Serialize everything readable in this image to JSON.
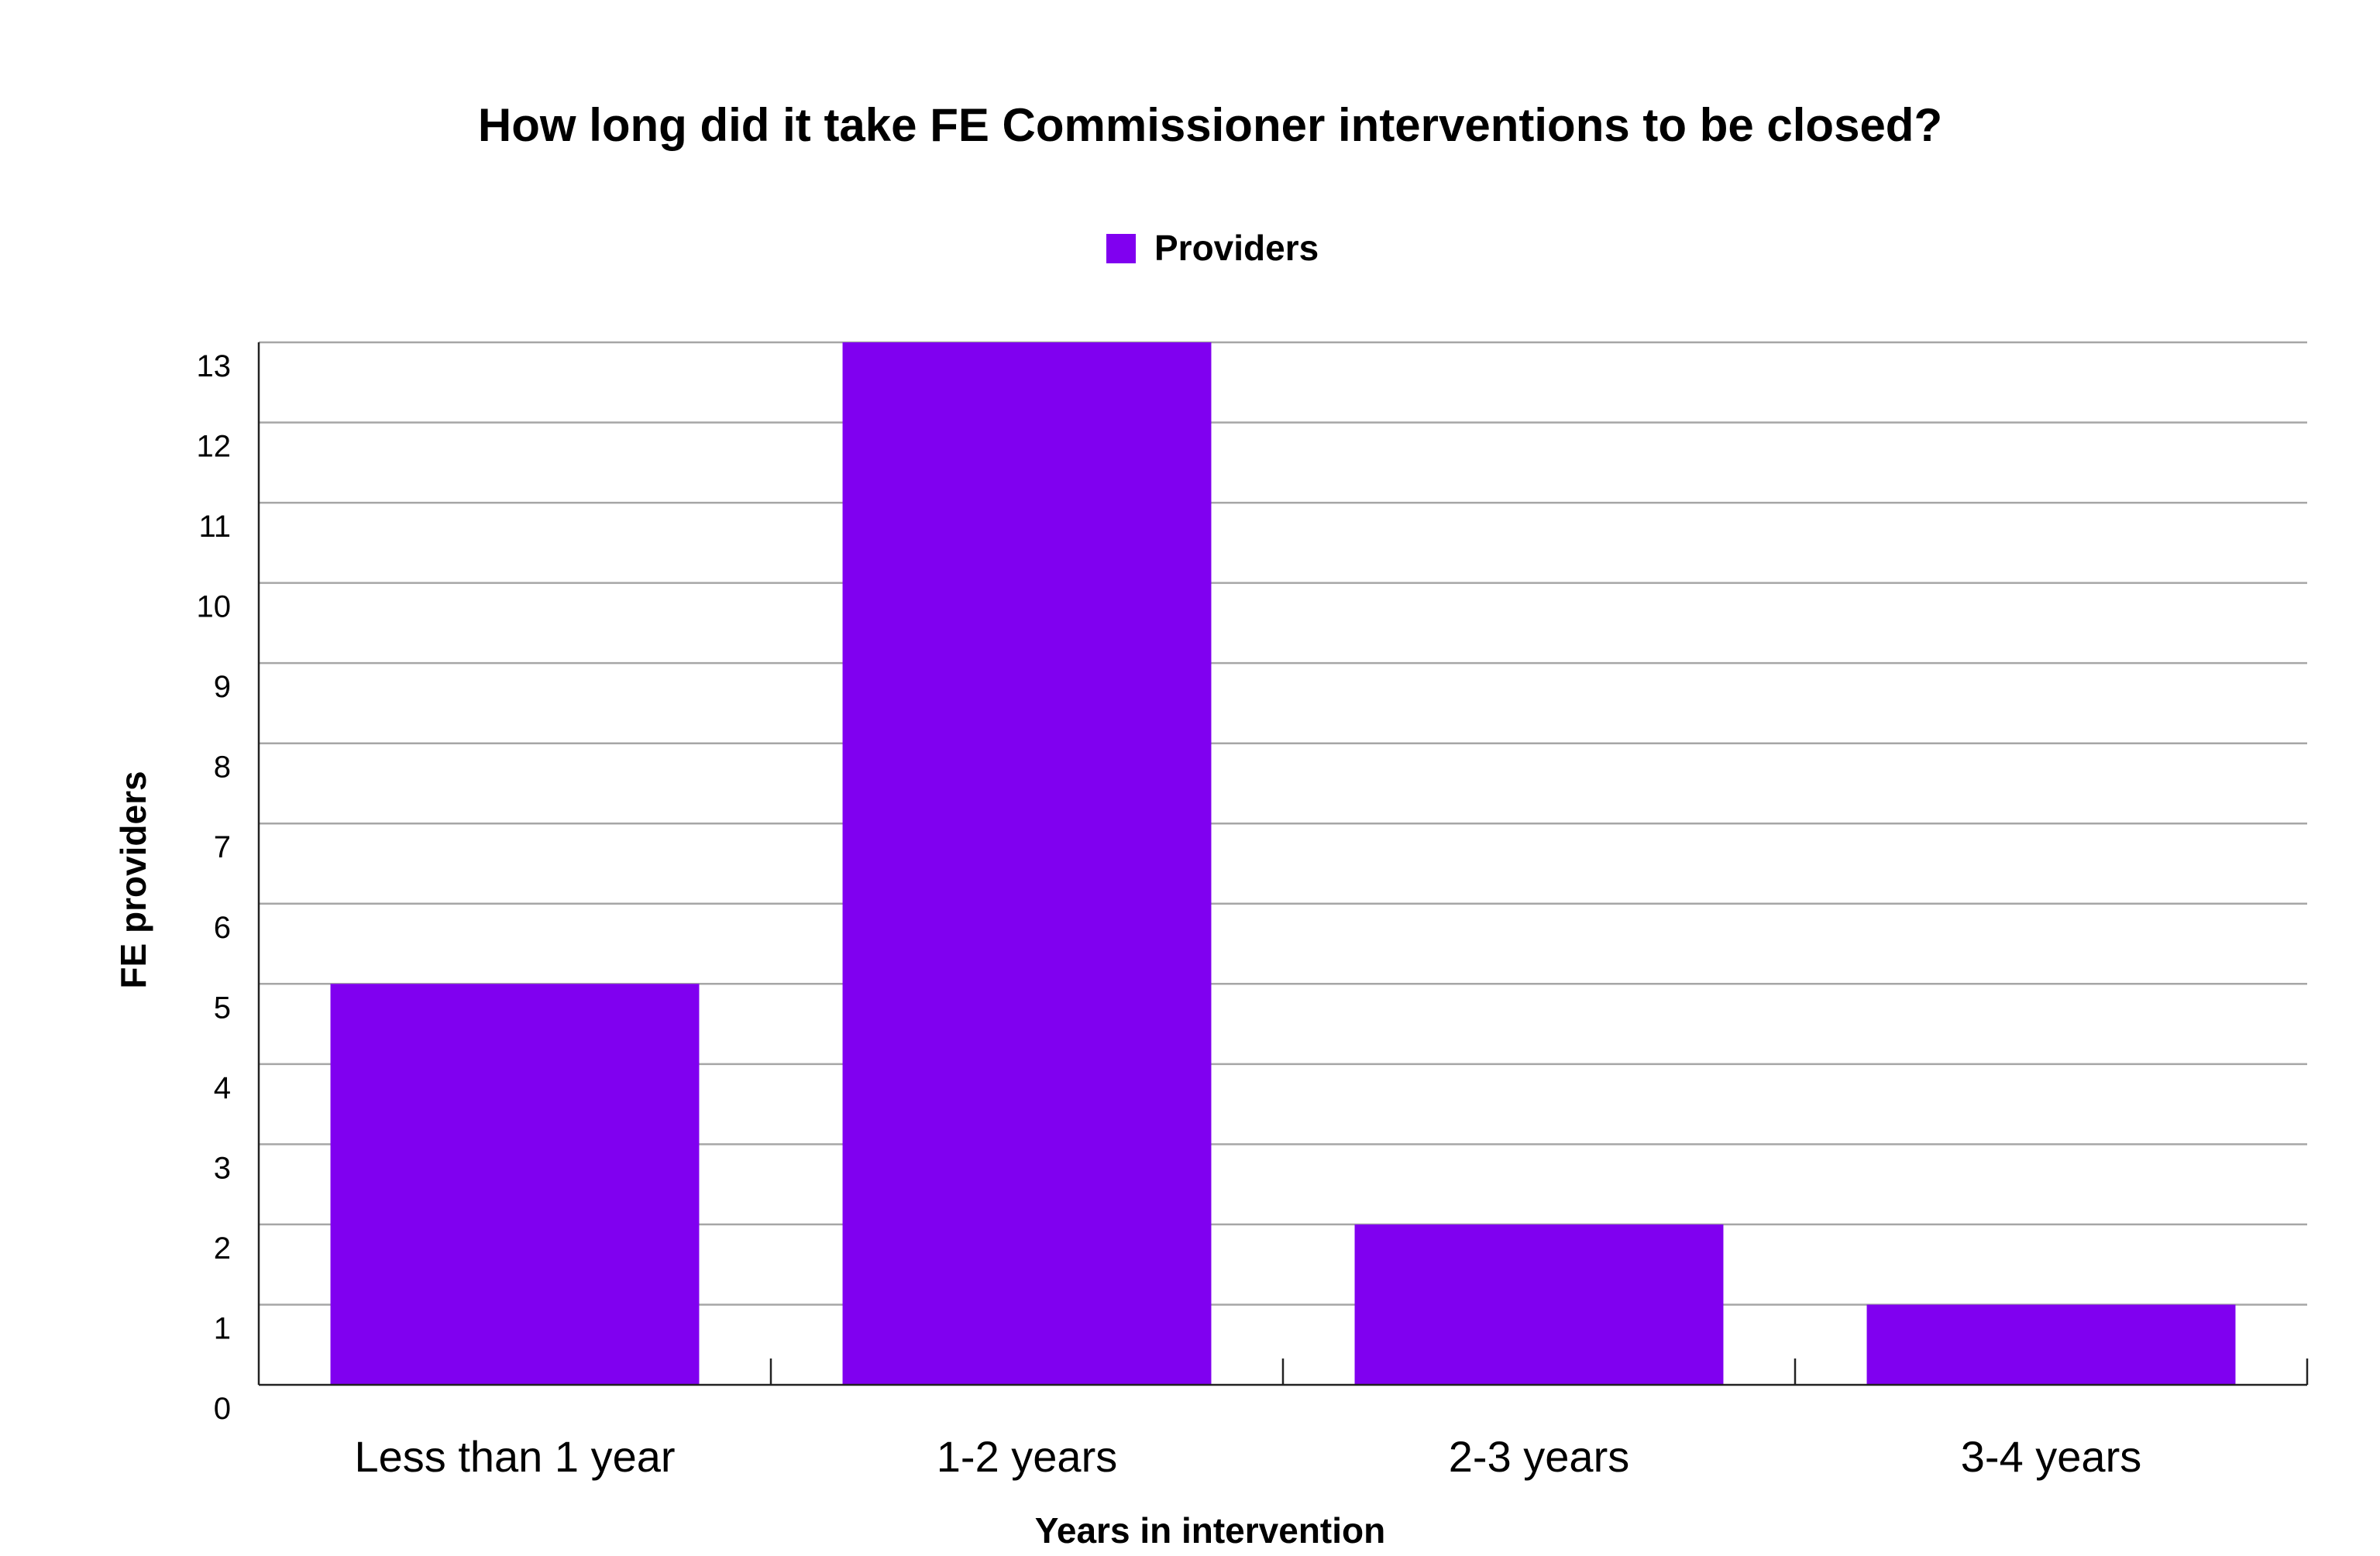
{
  "chart_data": {
    "type": "bar",
    "title": "How long did it take FE Commissioner interventions to be closed?",
    "xlabel": "Years in intervention",
    "ylabel": "FE providers",
    "categories": [
      "Less than 1 year",
      "1-2 years",
      "2-3 years",
      "3-4 years"
    ],
    "series": [
      {
        "name": "Providers",
        "values": [
          5,
          13,
          2,
          1
        ],
        "color": "#8000f0"
      }
    ],
    "ylim": [
      0,
      13
    ],
    "yticks": [
      "0",
      "1",
      "2",
      "3",
      "4",
      "5",
      "6",
      "7",
      "8",
      "9",
      "10",
      "11",
      "12",
      "13"
    ],
    "grid": true,
    "legend_position": "top-center"
  }
}
